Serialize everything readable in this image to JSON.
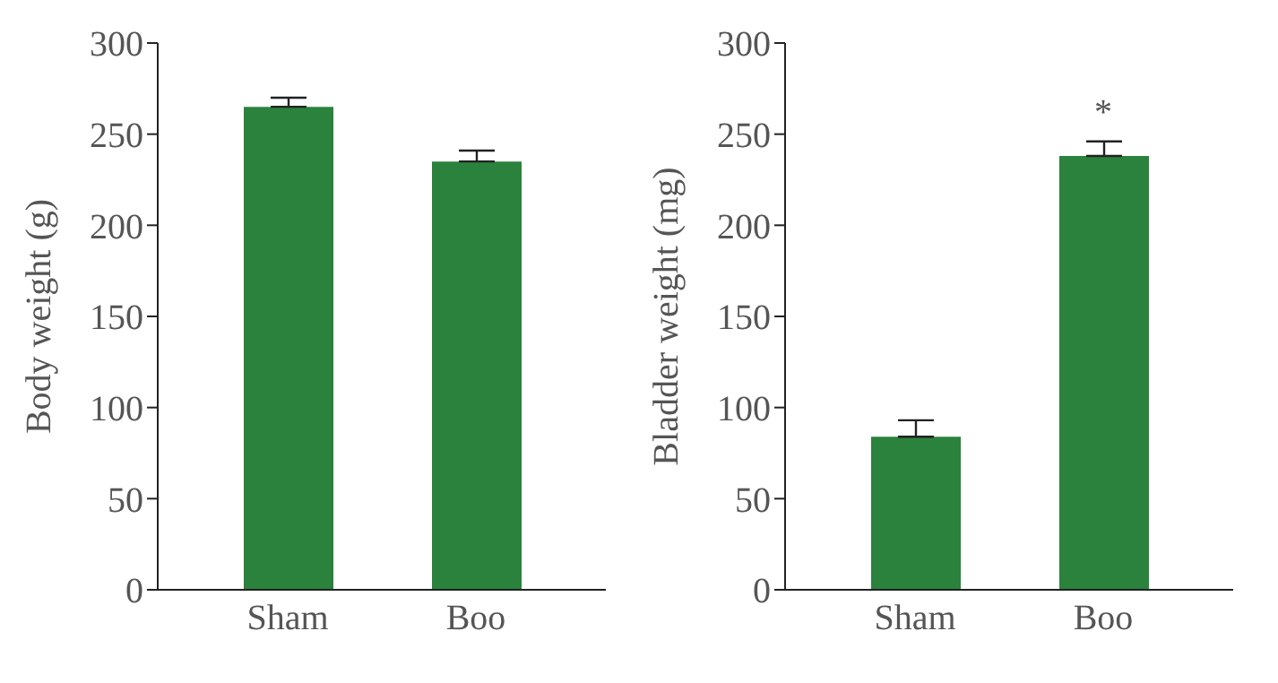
{
  "chart_data": [
    {
      "type": "bar",
      "ylabel": "Body weight (g)",
      "categories": [
        "Sham",
        "Boo"
      ],
      "values": [
        265,
        235
      ],
      "errors": [
        [
          265,
          270
        ],
        [
          235,
          241
        ]
      ],
      "color": "#2a823c",
      "ylim": [
        0,
        300
      ],
      "yticks": [
        0,
        50,
        100,
        150,
        200,
        250,
        300
      ],
      "grid": false,
      "legend": false
    },
    {
      "type": "bar",
      "ylabel": "Bladder weight (mg)",
      "categories": [
        "Sham",
        "Boo"
      ],
      "values": [
        84,
        238
      ],
      "errors": [
        [
          84,
          93
        ],
        [
          238,
          246
        ]
      ],
      "color": "#2a823c",
      "ylim": [
        0,
        300
      ],
      "yticks": [
        0,
        50,
        100,
        150,
        200,
        250,
        300
      ],
      "grid": false,
      "legend": false,
      "annotations": [
        {
          "text": "*",
          "x": "Boo",
          "y": 246
        }
      ]
    }
  ]
}
